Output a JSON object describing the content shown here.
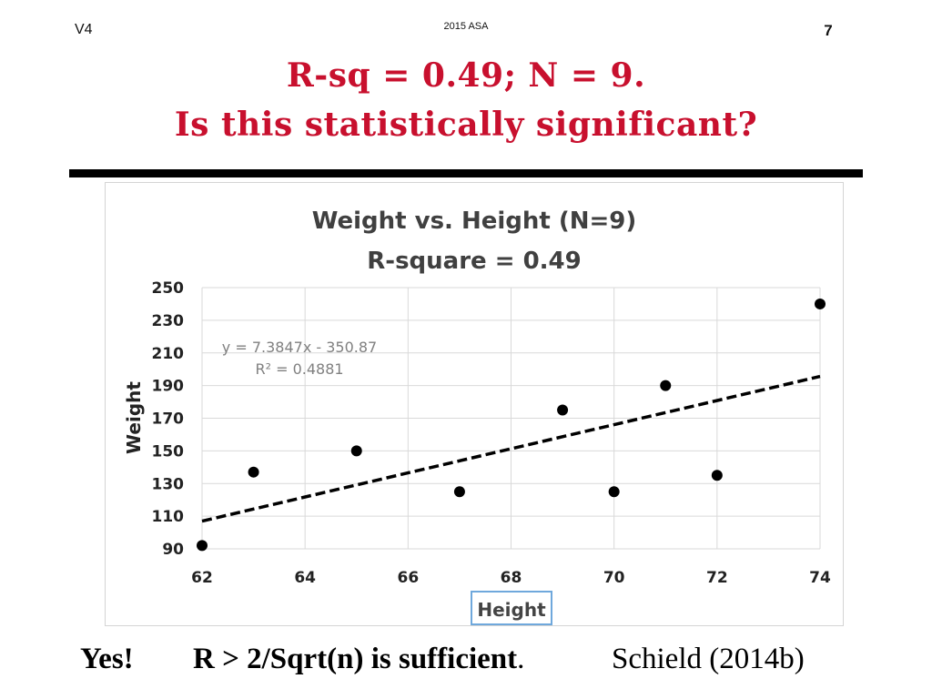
{
  "header": {
    "version": "V4",
    "source": "2015 ASA",
    "page_number": "7"
  },
  "title": {
    "line1": "R-sq = 0.49;  N = 9.",
    "line2": "Is this statistically significant?"
  },
  "chart_data": {
    "type": "scatter",
    "title": "Weight vs. Height (N=9)",
    "subtitle": "R-square = 0.49",
    "xlabel": "Height",
    "ylabel": "Weight",
    "xlim": [
      62,
      74
    ],
    "ylim": [
      90,
      250
    ],
    "x_ticks": [
      62,
      64,
      66,
      68,
      70,
      72,
      74
    ],
    "y_ticks": [
      90,
      110,
      130,
      150,
      170,
      190,
      210,
      230,
      250
    ],
    "points": [
      {
        "x": 62,
        "y": 92
      },
      {
        "x": 63,
        "y": 137
      },
      {
        "x": 65,
        "y": 150
      },
      {
        "x": 67,
        "y": 125
      },
      {
        "x": 69,
        "y": 175
      },
      {
        "x": 70,
        "y": 125
      },
      {
        "x": 71,
        "y": 190
      },
      {
        "x": 72,
        "y": 135
      },
      {
        "x": 74,
        "y": 240
      }
    ],
    "trendline": {
      "slope": 7.3847,
      "intercept": -350.87,
      "equation": "y = 7.3847x - 350.87",
      "r_squared_label": "R² = 0.4881"
    },
    "grid": true,
    "point_color": "#000000",
    "trendline_color": "#000000"
  },
  "footer": {
    "answer": "Yes!",
    "rule": "R > 2/Sqrt(n) is sufficient",
    "rule_suffix": ".",
    "citation": "Schield (2014b)"
  },
  "colors": {
    "title": "#c8102e",
    "rule": "#000000"
  }
}
